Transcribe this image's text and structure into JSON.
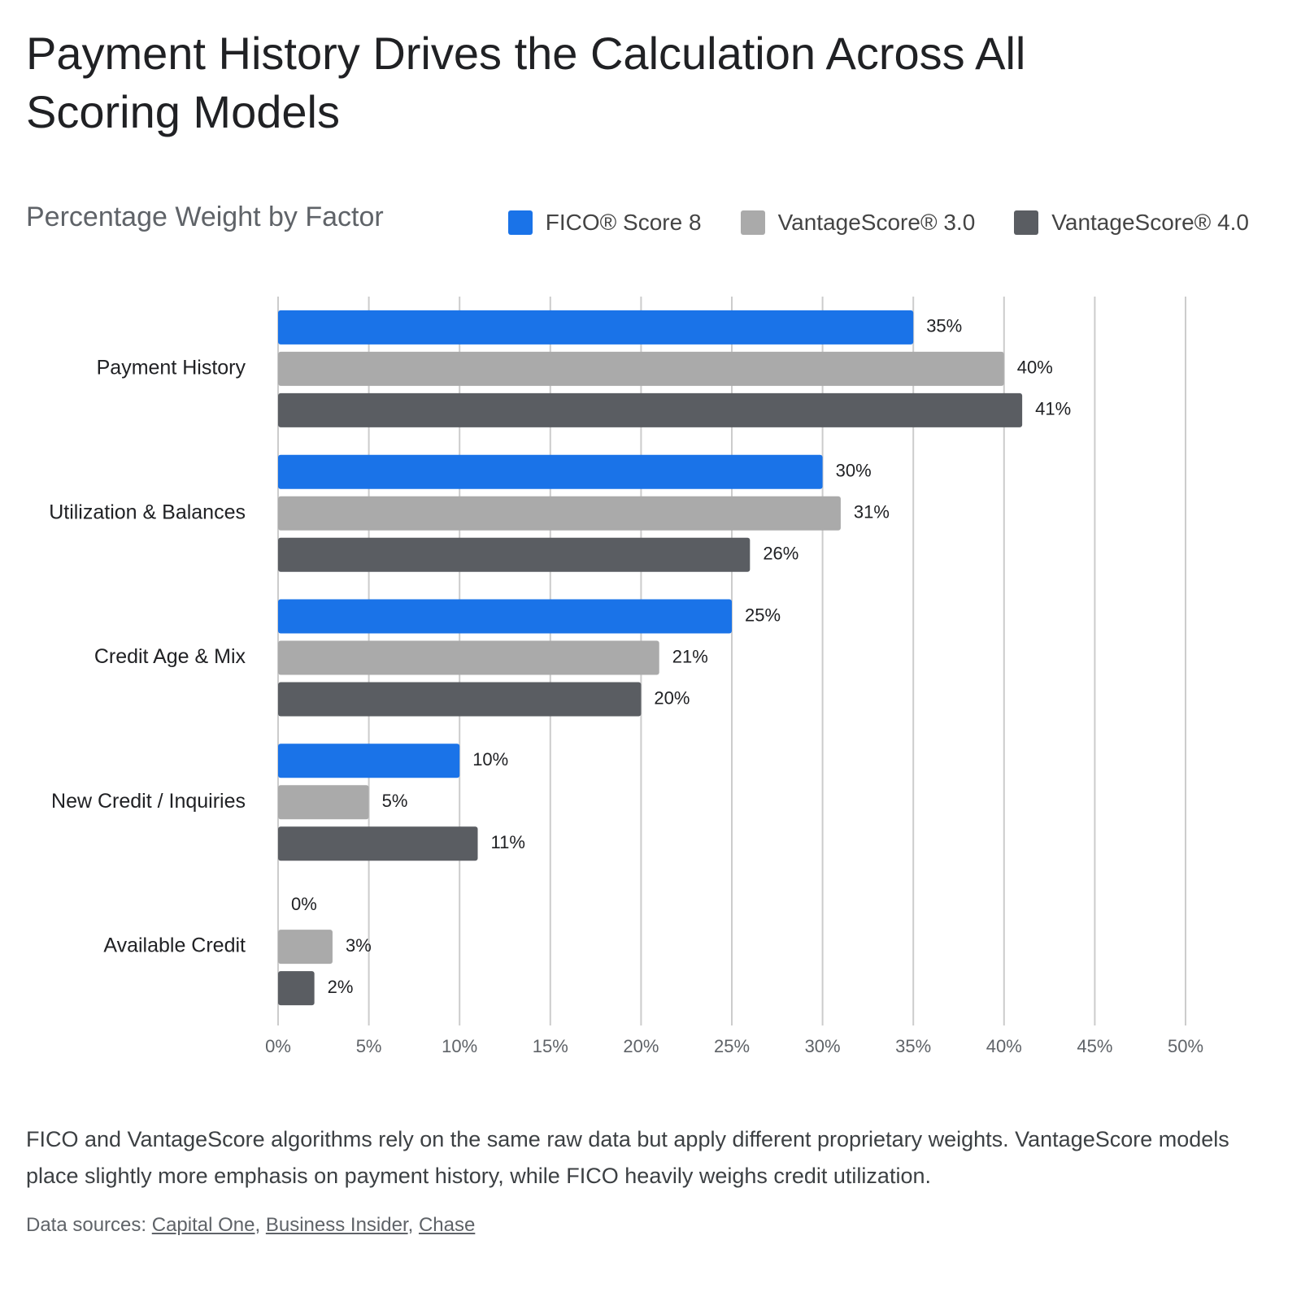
{
  "chart_data": {
    "type": "bar",
    "orientation": "horizontal",
    "title": "Payment History Drives the Calculation Across All Scoring Models",
    "subtitle": "Percentage Weight by Factor",
    "categories": [
      "Payment History",
      "Utilization & Balances",
      "Credit Age & Mix",
      "New Credit / Inquiries",
      "Available Credit"
    ],
    "series": [
      {
        "name": "FICO® Score 8",
        "color": "#1a73e8",
        "values": [
          35,
          30,
          25,
          10,
          0
        ],
        "value_labels": [
          "35%",
          "30%",
          "25%",
          "10%",
          "0%"
        ]
      },
      {
        "name": "VantageScore® 3.0",
        "color": "#aaaaaa",
        "values": [
          40,
          31,
          21,
          5,
          3
        ],
        "value_labels": [
          "40%",
          "31%",
          "21%",
          "5%",
          "3%"
        ]
      },
      {
        "name": "VantageScore® 4.0",
        "color": "#5a5d62",
        "values": [
          41,
          26,
          20,
          11,
          2
        ],
        "value_labels": [
          "41%",
          "26%",
          "20%",
          "11%",
          "2%"
        ]
      }
    ],
    "xlim": [
      0,
      50
    ],
    "xticks": [
      {
        "value": 0,
        "label": "0%"
      },
      {
        "value": 5,
        "label": "5%"
      },
      {
        "value": 10,
        "label": "10%"
      },
      {
        "value": 15,
        "label": "15%"
      },
      {
        "value": 20,
        "label": "20%"
      },
      {
        "value": 25,
        "label": "25%"
      },
      {
        "value": 30,
        "label": "30%"
      },
      {
        "value": 35,
        "label": "35%"
      },
      {
        "value": 40,
        "label": "40%"
      },
      {
        "value": 45,
        "label": "45%"
      },
      {
        "value": 50,
        "label": "50%"
      }
    ],
    "grid": true,
    "legend": "top-right",
    "caption": "FICO and VantageScore algorithms rely on the same raw data but apply different proprietary weights. VantageScore models place slightly more emphasis on payment history, while FICO heavily weighs credit utilization.",
    "sources_label": "Data sources:",
    "sources": [
      "Capital One",
      "Business Insider",
      "Chase"
    ],
    "source_separator": ","
  }
}
